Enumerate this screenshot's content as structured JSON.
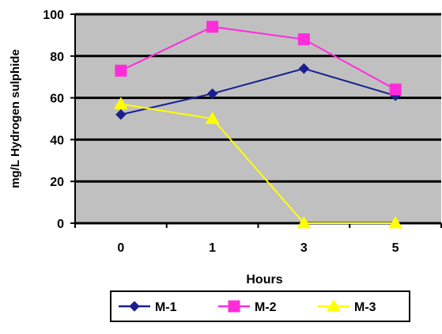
{
  "chart_data": {
    "type": "line",
    "categories": [
      "0",
      "1",
      "3",
      "5"
    ],
    "series": [
      {
        "name": "M-1",
        "values": [
          52,
          62,
          74,
          61
        ],
        "color": "#1a1f8f",
        "marker": "diamond"
      },
      {
        "name": "M-2",
        "values": [
          73,
          94,
          88,
          64
        ],
        "color": "#ff2cd9",
        "marker": "square"
      },
      {
        "name": "M-3",
        "values": [
          57,
          50,
          0,
          0
        ],
        "color": "#ffff00",
        "marker": "triangle"
      }
    ],
    "xlabel": "Hours",
    "ylabel": "mg/L Hydrogen sulphide",
    "ylim": [
      0,
      100
    ],
    "yticks": [
      "0",
      "20",
      "40",
      "60",
      "80",
      "100"
    ],
    "grid": true,
    "legend_position": "bottom",
    "plot_background": "#c0c0c0"
  }
}
